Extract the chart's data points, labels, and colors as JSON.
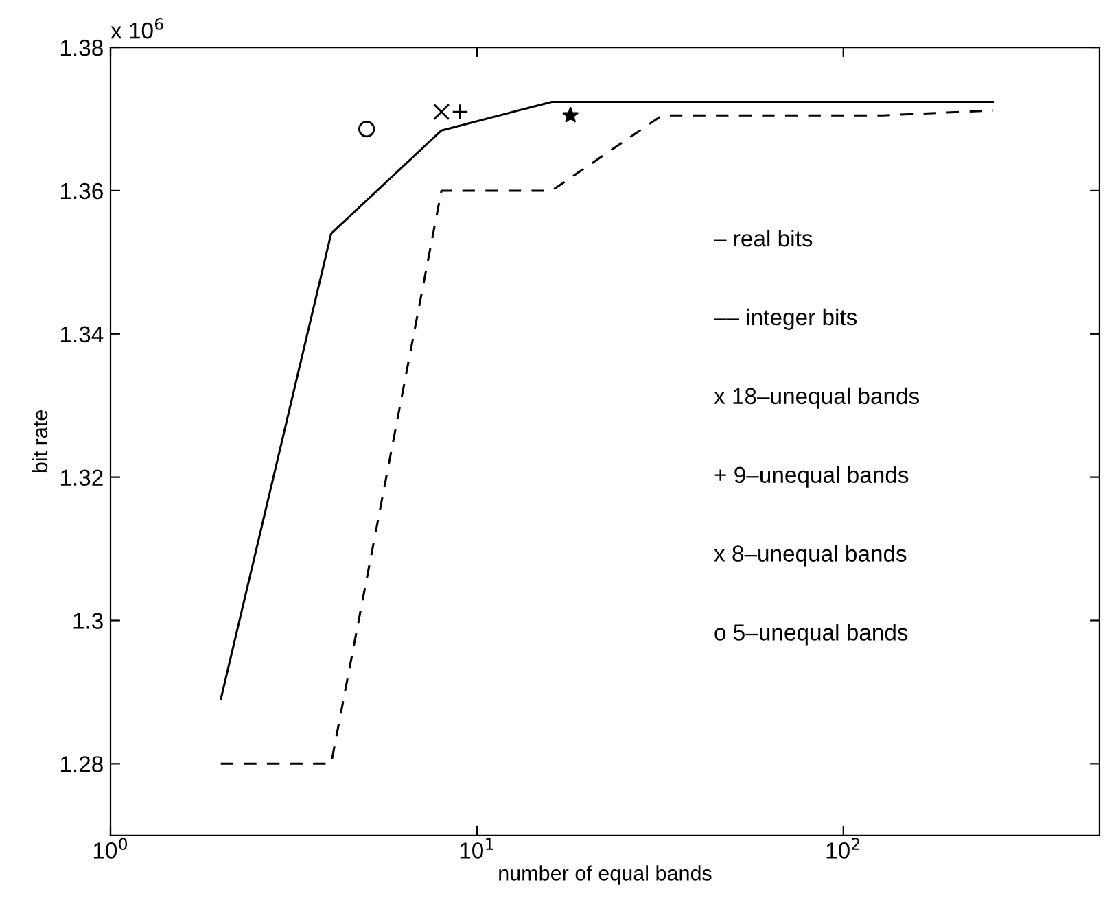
{
  "chart_data": {
    "type": "line",
    "xlabel": "number of equal bands",
    "ylabel": "bit rate",
    "log": "x",
    "xlim": [
      1,
      500
    ],
    "xticks": [
      {
        "value": 1,
        "label": "10$^{0}$"
      },
      {
        "value": 10,
        "label": "10$^{1}$"
      },
      {
        "value": 100,
        "label": "10$^{2}$"
      }
    ],
    "ylim": [
      1.27,
      1.38
    ],
    "yticks": [
      1.28,
      {
        "value": 1.3,
        "label": "1.3"
      },
      1.32,
      1.34,
      1.36,
      1.38
    ],
    "grid": false,
    "legend": false,
    "series": [
      {
        "color": "#000000",
        "line_style": "solid",
        "marker": "none",
        "x": [
          2,
          4,
          8,
          16,
          32,
          64,
          128,
          256
        ],
        "values": [
          1.289,
          1.354,
          1.3684,
          1.3724,
          1.3724,
          1.3724,
          1.3724,
          1.3724
        ]
      },
      {
        "color": "#000000",
        "line_style": "dashed",
        "marker": "none",
        "x": [
          2,
          4,
          8,
          16,
          32,
          64,
          128,
          256
        ],
        "values": [
          1.28,
          1.28,
          1.36,
          1.36,
          1.3705,
          1.3705,
          1.3705,
          1.3712
        ]
      },
      {
        "type": "scatter",
        "color": "#000000",
        "marker": "star",
        "x": [
          18
        ],
        "values": [
          1.3705
        ]
      },
      {
        "type": "scatter",
        "color": "#000000",
        "marker": "plus",
        "x": [
          9
        ],
        "values": [
          1.371
        ]
      },
      {
        "type": "scatter",
        "color": "#000000",
        "marker": "cross",
        "x": [
          8
        ],
        "values": [
          1.371
        ]
      },
      {
        "type": "scatter",
        "color": "#000000",
        "marker": "circle",
        "x": [
          5
        ],
        "values": [
          1.3686
        ]
      }
    ],
    "annotations": [
      "x 10$^{6}$",
      "– real bits",
      "–– integer bits",
      "x 18–unequal bands",
      "+ 9–unequal bands",
      "x 8–unequal bands",
      "o 5–unequal bands"
    ]
  }
}
